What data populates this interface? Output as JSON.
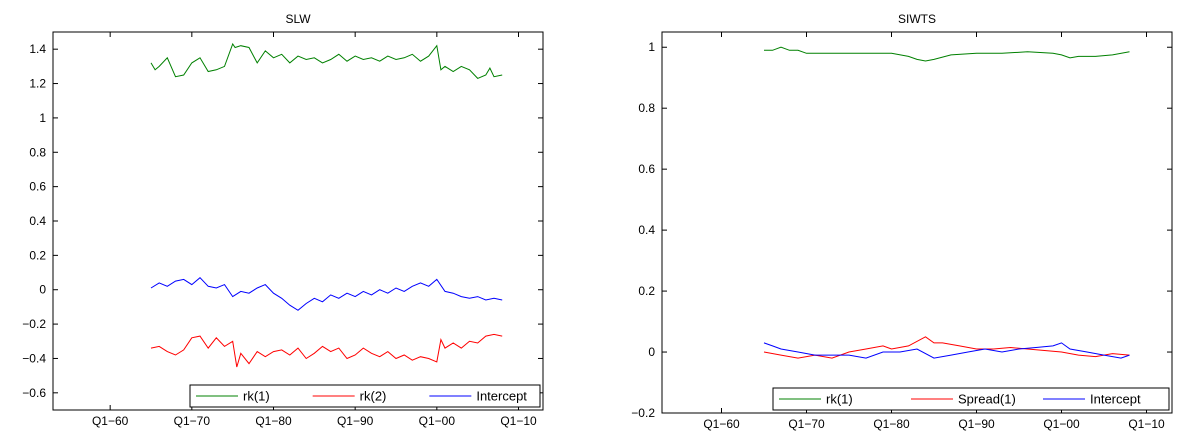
{
  "chart_data": [
    {
      "type": "line",
      "title": "SLW",
      "xlabel": "",
      "ylabel": "",
      "xlim": [
        1953,
        2013
      ],
      "ylim": [
        -0.7,
        1.5
      ],
      "xticks": [
        1960,
        1970,
        1980,
        1990,
        2000,
        2010
      ],
      "xtick_labels": [
        "Q1−60",
        "Q1−70",
        "Q1−80",
        "Q1−90",
        "Q1−00",
        "Q1−10"
      ],
      "yticks": [
        -0.6,
        -0.4,
        -0.2,
        0,
        0.2,
        0.4,
        0.6,
        0.8,
        1,
        1.2,
        1.4
      ],
      "ytick_labels": [
        "−0.6",
        "−0.4",
        "−0.2",
        "0",
        "0.2",
        "0.4",
        "0.6",
        "0.8",
        "1",
        "1.2",
        "1.4"
      ],
      "grid": false,
      "legend_position": "bottom-right",
      "series": [
        {
          "name": "rk(1)",
          "color": "#008000",
          "x": [
            1965,
            1965.5,
            1966,
            1967,
            1968,
            1969,
            1970,
            1971,
            1972,
            1973,
            1974,
            1975,
            1975.3,
            1976,
            1977,
            1978,
            1979,
            1980,
            1981,
            1982,
            1983,
            1984,
            1985,
            1986,
            1987,
            1988,
            1989,
            1990,
            1991,
            1992,
            1993,
            1994,
            1995,
            1996,
            1997,
            1998,
            1999,
            2000,
            2000.5,
            2001,
            2002,
            2003,
            2004,
            2005,
            2006,
            2006.5,
            2007,
            2008
          ],
          "y": [
            1.32,
            1.28,
            1.3,
            1.35,
            1.24,
            1.25,
            1.32,
            1.35,
            1.27,
            1.28,
            1.3,
            1.43,
            1.41,
            1.42,
            1.41,
            1.32,
            1.39,
            1.35,
            1.37,
            1.32,
            1.36,
            1.34,
            1.35,
            1.32,
            1.34,
            1.37,
            1.33,
            1.36,
            1.34,
            1.35,
            1.33,
            1.36,
            1.34,
            1.35,
            1.37,
            1.33,
            1.36,
            1.42,
            1.28,
            1.3,
            1.27,
            1.3,
            1.28,
            1.23,
            1.25,
            1.29,
            1.24,
            1.25
          ]
        },
        {
          "name": "rk(2)",
          "color": "#ff0000",
          "x": [
            1965,
            1966,
            1967,
            1968,
            1969,
            1970,
            1971,
            1972,
            1973,
            1974,
            1975,
            1975.5,
            1976,
            1977,
            1978,
            1979,
            1980,
            1981,
            1982,
            1983,
            1984,
            1985,
            1986,
            1987,
            1988,
            1989,
            1990,
            1991,
            1992,
            1993,
            1994,
            1995,
            1996,
            1997,
            1998,
            1999,
            2000,
            2000.5,
            2001,
            2002,
            2003,
            2004,
            2005,
            2006,
            2007,
            2008
          ],
          "y": [
            -0.34,
            -0.33,
            -0.36,
            -0.38,
            -0.35,
            -0.28,
            -0.27,
            -0.34,
            -0.28,
            -0.33,
            -0.3,
            -0.45,
            -0.37,
            -0.43,
            -0.36,
            -0.39,
            -0.36,
            -0.35,
            -0.38,
            -0.34,
            -0.4,
            -0.37,
            -0.33,
            -0.36,
            -0.34,
            -0.4,
            -0.38,
            -0.34,
            -0.37,
            -0.39,
            -0.36,
            -0.4,
            -0.38,
            -0.41,
            -0.39,
            -0.4,
            -0.42,
            -0.29,
            -0.34,
            -0.31,
            -0.34,
            -0.3,
            -0.31,
            -0.27,
            -0.26,
            -0.27
          ]
        },
        {
          "name": "Intercept",
          "color": "#0000ff",
          "x": [
            1965,
            1966,
            1967,
            1968,
            1969,
            1970,
            1971,
            1972,
            1973,
            1974,
            1975,
            1976,
            1977,
            1978,
            1979,
            1980,
            1981,
            1982,
            1983,
            1984,
            1985,
            1986,
            1987,
            1988,
            1989,
            1990,
            1991,
            1992,
            1993,
            1994,
            1995,
            1996,
            1997,
            1998,
            1999,
            2000,
            2001,
            2002,
            2003,
            2004,
            2005,
            2006,
            2007,
            2008
          ],
          "y": [
            0.01,
            0.04,
            0.02,
            0.05,
            0.06,
            0.03,
            0.07,
            0.02,
            0.01,
            0.03,
            -0.04,
            -0.01,
            -0.02,
            0.01,
            0.03,
            -0.02,
            -0.05,
            -0.09,
            -0.12,
            -0.08,
            -0.05,
            -0.07,
            -0.03,
            -0.05,
            -0.02,
            -0.04,
            -0.01,
            -0.03,
            0.0,
            -0.02,
            0.01,
            -0.01,
            0.02,
            0.04,
            0.02,
            0.06,
            -0.01,
            -0.02,
            -0.04,
            -0.05,
            -0.04,
            -0.06,
            -0.05,
            -0.06
          ]
        }
      ]
    },
    {
      "type": "line",
      "title": "SIWTS",
      "xlabel": "",
      "ylabel": "",
      "xlim": [
        1953,
        2013
      ],
      "ylim": [
        -0.2,
        1.05
      ],
      "xticks": [
        1960,
        1970,
        1980,
        1990,
        2000,
        2010
      ],
      "xtick_labels": [
        "Q1−60",
        "Q1−70",
        "Q1−80",
        "Q1−90",
        "Q1−00",
        "Q1−10"
      ],
      "yticks": [
        -0.2,
        0,
        0.2,
        0.4,
        0.6,
        0.8,
        1
      ],
      "ytick_labels": [
        "−0.2",
        "0",
        "0.2",
        "0.4",
        "0.6",
        "0.8",
        "1"
      ],
      "grid": false,
      "legend_position": "bottom-right",
      "series": [
        {
          "name": "rk(1)",
          "color": "#008000",
          "x": [
            1965,
            1966,
            1967,
            1968,
            1969,
            1970,
            1972,
            1975,
            1978,
            1980,
            1982,
            1983,
            1984,
            1985,
            1987,
            1990,
            1993,
            1996,
            1999,
            2000,
            2001,
            2002,
            2004,
            2006,
            2008
          ],
          "y": [
            0.99,
            0.99,
            1.0,
            0.99,
            0.99,
            0.98,
            0.98,
            0.98,
            0.98,
            0.98,
            0.97,
            0.96,
            0.955,
            0.96,
            0.975,
            0.98,
            0.98,
            0.985,
            0.98,
            0.975,
            0.965,
            0.97,
            0.97,
            0.975,
            0.985
          ]
        },
        {
          "name": "Spread(1)",
          "color": "#ff0000",
          "x": [
            1965,
            1967,
            1969,
            1971,
            1973,
            1975,
            1977,
            1979,
            1980,
            1982,
            1984,
            1985,
            1986,
            1988,
            1990,
            1992,
            1994,
            1996,
            1998,
            2000,
            2002,
            2004,
            2006,
            2008
          ],
          "y": [
            0.0,
            -0.01,
            -0.02,
            -0.01,
            -0.02,
            0.0,
            0.01,
            0.02,
            0.01,
            0.02,
            0.05,
            0.03,
            0.03,
            0.02,
            0.01,
            0.01,
            0.015,
            0.01,
            0.005,
            0.0,
            -0.01,
            -0.015,
            -0.005,
            -0.01
          ]
        },
        {
          "name": "Intercept",
          "color": "#0000ff",
          "x": [
            1965,
            1966,
            1967,
            1969,
            1971,
            1973,
            1975,
            1977,
            1979,
            1981,
            1983,
            1985,
            1987,
            1989,
            1991,
            1993,
            1995,
            1997,
            1999,
            2000,
            2001,
            2003,
            2005,
            2007,
            2008
          ],
          "y": [
            0.03,
            0.02,
            0.01,
            0.0,
            -0.01,
            -0.01,
            -0.01,
            -0.02,
            0.0,
            0.0,
            0.01,
            -0.02,
            -0.01,
            0.0,
            0.01,
            0.0,
            0.01,
            0.015,
            0.02,
            0.03,
            0.01,
            0.0,
            -0.01,
            -0.02,
            -0.01
          ]
        }
      ]
    }
  ]
}
